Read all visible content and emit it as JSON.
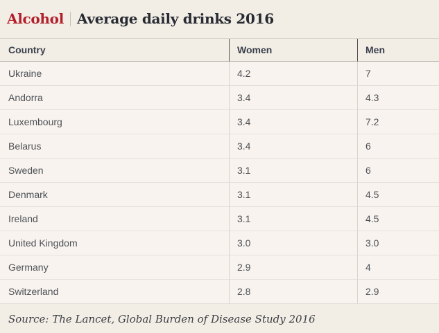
{
  "header": {
    "category": "Alcohol",
    "title": "Average daily drinks 2016"
  },
  "table": {
    "columns": {
      "country": "Country",
      "women": "Women",
      "men": "Men"
    },
    "rows": [
      {
        "country": "Ukraine",
        "women": "4.2",
        "men": "7"
      },
      {
        "country": "Andorra",
        "women": "3.4",
        "men": "4.3"
      },
      {
        "country": "Luxembourg",
        "women": "3.4",
        "men": "7.2"
      },
      {
        "country": "Belarus",
        "women": "3.4",
        "men": "6"
      },
      {
        "country": "Sweden",
        "women": "3.1",
        "men": "6"
      },
      {
        "country": "Denmark",
        "women": "3.1",
        "men": "4.5"
      },
      {
        "country": "Ireland",
        "women": "3.1",
        "men": "4.5"
      },
      {
        "country": "United Kingdom",
        "women": "3.0",
        "men": "3.0"
      },
      {
        "country": "Germany",
        "women": "2.9",
        "men": "4"
      },
      {
        "country": "Switzerland",
        "women": "2.8",
        "men": "2.9"
      }
    ]
  },
  "footer": {
    "source": "Source: The Lancet, Global Burden of Disease Study 2016"
  },
  "colors": {
    "accent_red": "#b2202c",
    "page_background": "#f3eee5",
    "row_background": "#f8f3ee",
    "headline_text": "#272b33",
    "header_text": "#3a414e",
    "body_text": "#4d5157",
    "header_rule": "#b2aea7",
    "row_rule": "#e5e0d9"
  },
  "chart_data": {
    "type": "table",
    "title": "Alcohol | Average daily drinks 2016",
    "categories": [
      "Ukraine",
      "Andorra",
      "Luxembourg",
      "Belarus",
      "Sweden",
      "Denmark",
      "Ireland",
      "United Kingdom",
      "Germany",
      "Switzerland"
    ],
    "series": [
      {
        "name": "Women",
        "values": [
          4.2,
          3.4,
          3.4,
          3.4,
          3.1,
          3.1,
          3.1,
          3.0,
          2.9,
          2.8
        ]
      },
      {
        "name": "Men",
        "values": [
          7,
          4.3,
          7.2,
          6,
          6,
          4.5,
          4.5,
          3.0,
          4,
          2.9
        ]
      }
    ],
    "source": "Source: The Lancet, Global Burden of Disease Study 2016"
  }
}
